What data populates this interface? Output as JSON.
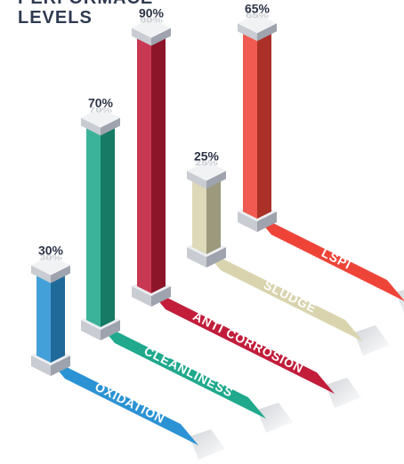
{
  "title": {
    "line1": "PERFORMACE",
    "line2": "LEVELS"
  },
  "chart_data": {
    "type": "bar",
    "style": "isometric 3D pillars with labeled floor ribbons",
    "categories": [
      "OXIDATION",
      "CLEANLINESS",
      "ANTI CORROSION",
      "SLUDGE",
      "LSPI"
    ],
    "values": [
      30,
      70,
      90,
      25,
      65
    ],
    "value_labels": [
      "30%",
      "70%",
      "90%",
      "25%",
      "65%"
    ],
    "colors": [
      "#2b93d3",
      "#20a98c",
      "#c21d3b",
      "#d9d4ae",
      "#ee4438"
    ],
    "title": "PERFORMACE LEVELS",
    "xlabel": "",
    "ylabel": "",
    "ylim": [
      0,
      100
    ],
    "grid": false,
    "legend": "none"
  }
}
